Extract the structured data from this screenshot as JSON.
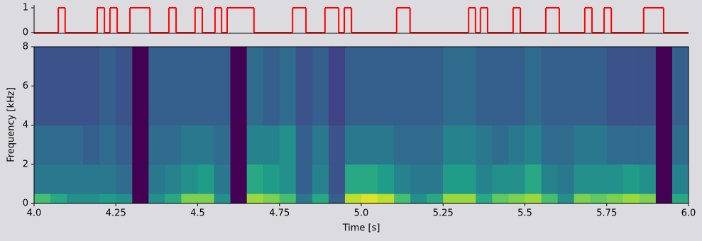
{
  "chart_data": [
    {
      "type": "step",
      "color": "#ff0000",
      "x": [
        4.0,
        4.074,
        4.095,
        4.193,
        4.215,
        4.232,
        4.254,
        4.293,
        4.354,
        4.412,
        4.434,
        4.492,
        4.514,
        4.553,
        4.573,
        4.59,
        4.672,
        4.79,
        4.831,
        4.889,
        4.931,
        4.948,
        4.97,
        5.108,
        5.149,
        5.328,
        5.349,
        5.364,
        5.386,
        5.464,
        5.486,
        5.564,
        5.605,
        5.683,
        5.705,
        5.742,
        5.764,
        5.863,
        5.924,
        6.0
      ],
      "values": [
        0,
        1,
        0,
        1,
        0,
        1,
        0,
        1,
        0,
        1,
        0,
        1,
        0,
        1,
        0,
        1,
        0,
        1,
        0,
        1,
        0,
        1,
        0,
        1,
        0,
        1,
        0,
        1,
        0,
        1,
        0,
        1,
        0,
        1,
        0,
        1,
        0,
        1,
        0,
        0
      ],
      "xlim": [
        4.0,
        6.0
      ],
      "ylim": [
        0,
        1
      ],
      "yticks": [
        0,
        1
      ]
    },
    {
      "type": "spectrogram",
      "colormap": "viridis",
      "xlabel": "Time [s]",
      "ylabel": "Frequency [kHz]",
      "xlim": [
        4.0,
        6.0
      ],
      "ylim": [
        0,
        8
      ],
      "xticks": [
        {
          "value": 4.0,
          "label": "4.0"
        },
        4.25,
        4.5,
        4.75,
        {
          "value": 5.0,
          "label": "5.0"
        },
        5.25,
        5.5,
        5.75,
        {
          "value": 6.0,
          "label": "6.0"
        }
      ],
      "yticks": [
        0,
        2,
        4,
        6,
        8
      ],
      "time_bins": [
        4.0,
        4.05,
        4.1,
        4.15,
        4.2,
        4.25,
        4.3,
        4.35,
        4.4,
        4.45,
        4.5,
        4.55,
        4.6,
        4.65,
        4.7,
        4.75,
        4.8,
        4.85,
        4.9,
        4.95,
        5.0,
        5.05,
        5.1,
        5.15,
        5.2,
        5.25,
        5.3,
        5.35,
        5.4,
        5.45,
        5.5,
        5.55,
        5.6,
        5.65,
        5.7,
        5.75,
        5.8,
        5.85,
        5.9,
        5.95,
        6.0
      ],
      "freq_bins": [
        0,
        0.5,
        2,
        4,
        8
      ],
      "intensity": [
        [
          0.7,
          0.4,
          0.35,
          0.25
        ],
        [
          0.6,
          0.4,
          0.35,
          0.25
        ],
        [
          0.5,
          0.4,
          0.35,
          0.25
        ],
        [
          0.5,
          0.4,
          0.3,
          0.25
        ],
        [
          0.55,
          0.4,
          0.35,
          0.3
        ],
        [
          0.5,
          0.35,
          0.3,
          0.25
        ],
        [
          0,
          0,
          0,
          0
        ],
        [
          0.5,
          0.4,
          0.35,
          0.3
        ],
        [
          0.6,
          0.45,
          0.35,
          0.3
        ],
        [
          0.8,
          0.5,
          0.4,
          0.3
        ],
        [
          0.8,
          0.55,
          0.4,
          0.3
        ],
        [
          0.5,
          0.4,
          0.35,
          0.3
        ],
        [
          0,
          0,
          0,
          0
        ],
        [
          0.85,
          0.6,
          0.45,
          0.35
        ],
        [
          0.8,
          0.55,
          0.45,
          0.3
        ],
        [
          0.7,
          0.5,
          0.5,
          0.35
        ],
        [
          0.4,
          0.3,
          0.3,
          0.25
        ],
        [
          0.6,
          0.45,
          0.4,
          0.3
        ],
        [
          0.3,
          0.25,
          0.25,
          0.2
        ],
        [
          0.9,
          0.6,
          0.4,
          0.3
        ],
        [
          0.95,
          0.6,
          0.4,
          0.3
        ],
        [
          0.9,
          0.55,
          0.4,
          0.3
        ],
        [
          0.7,
          0.45,
          0.35,
          0.3
        ],
        [
          0.5,
          0.4,
          0.35,
          0.3
        ],
        [
          0.6,
          0.4,
          0.35,
          0.3
        ],
        [
          0.85,
          0.55,
          0.45,
          0.35
        ],
        [
          0.85,
          0.55,
          0.45,
          0.35
        ],
        [
          0.6,
          0.45,
          0.4,
          0.3
        ],
        [
          0.75,
          0.5,
          0.35,
          0.3
        ],
        [
          0.8,
          0.5,
          0.4,
          0.3
        ],
        [
          0.85,
          0.6,
          0.45,
          0.35
        ],
        [
          0.7,
          0.45,
          0.35,
          0.3
        ],
        [
          0.5,
          0.4,
          0.35,
          0.3
        ],
        [
          0.8,
          0.5,
          0.4,
          0.3
        ],
        [
          0.75,
          0.5,
          0.4,
          0.3
        ],
        [
          0.8,
          0.5,
          0.35,
          0.25
        ],
        [
          0.85,
          0.55,
          0.35,
          0.25
        ],
        [
          0.8,
          0.5,
          0.35,
          0.25
        ],
        [
          0,
          0,
          0,
          0
        ],
        [
          0.6,
          0.45,
          0.35,
          0.3
        ]
      ]
    }
  ]
}
